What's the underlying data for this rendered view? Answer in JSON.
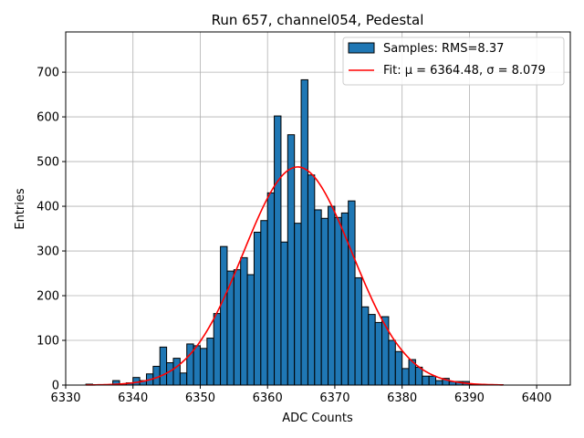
{
  "chart_data": {
    "type": "bar",
    "title": "Run 657, channel054, Pedestal",
    "xlabel": "ADC Counts",
    "ylabel": "Entries",
    "xlim": [
      6330,
      6405
    ],
    "ylim": [
      0,
      790
    ],
    "x_ticks": [
      6330,
      6340,
      6350,
      6360,
      6370,
      6380,
      6390,
      6400
    ],
    "y_ticks": [
      0,
      100,
      200,
      300,
      400,
      500,
      600,
      700
    ],
    "grid": true,
    "legend_position": "top-right",
    "colors": {
      "bars": "#1f77b4",
      "bar_edge": "#000000",
      "fit": "#ff0000"
    },
    "histogram": {
      "name": "Samples: RMS=8.37",
      "bin_width": 1,
      "bins": [
        {
          "x": 6333,
          "count": 2
        },
        {
          "x": 6334,
          "count": 1
        },
        {
          "x": 6335,
          "count": 1
        },
        {
          "x": 6336,
          "count": 1
        },
        {
          "x": 6337,
          "count": 10
        },
        {
          "x": 6338,
          "count": 3
        },
        {
          "x": 6339,
          "count": 5
        },
        {
          "x": 6340,
          "count": 17
        },
        {
          "x": 6341,
          "count": 10
        },
        {
          "x": 6342,
          "count": 25
        },
        {
          "x": 6343,
          "count": 42
        },
        {
          "x": 6344,
          "count": 85
        },
        {
          "x": 6345,
          "count": 50
        },
        {
          "x": 6346,
          "count": 60
        },
        {
          "x": 6347,
          "count": 27
        },
        {
          "x": 6348,
          "count": 92
        },
        {
          "x": 6349,
          "count": 88
        },
        {
          "x": 6350,
          "count": 82
        },
        {
          "x": 6351,
          "count": 105
        },
        {
          "x": 6352,
          "count": 160
        },
        {
          "x": 6353,
          "count": 310
        },
        {
          "x": 6354,
          "count": 255
        },
        {
          "x": 6355,
          "count": 258
        },
        {
          "x": 6356,
          "count": 285
        },
        {
          "x": 6357,
          "count": 247
        },
        {
          "x": 6358,
          "count": 342
        },
        {
          "x": 6359,
          "count": 368
        },
        {
          "x": 6360,
          "count": 430
        },
        {
          "x": 6361,
          "count": 602
        },
        {
          "x": 6362,
          "count": 320
        },
        {
          "x": 6363,
          "count": 560
        },
        {
          "x": 6364,
          "count": 362
        },
        {
          "x": 6365,
          "count": 683
        },
        {
          "x": 6366,
          "count": 470
        },
        {
          "x": 6367,
          "count": 392
        },
        {
          "x": 6368,
          "count": 373
        },
        {
          "x": 6369,
          "count": 400
        },
        {
          "x": 6370,
          "count": 375
        },
        {
          "x": 6371,
          "count": 385
        },
        {
          "x": 6372,
          "count": 412
        },
        {
          "x": 6373,
          "count": 240
        },
        {
          "x": 6374,
          "count": 175
        },
        {
          "x": 6375,
          "count": 158
        },
        {
          "x": 6376,
          "count": 140
        },
        {
          "x": 6377,
          "count": 153
        },
        {
          "x": 6378,
          "count": 100
        },
        {
          "x": 6379,
          "count": 75
        },
        {
          "x": 6380,
          "count": 37
        },
        {
          "x": 6381,
          "count": 57
        },
        {
          "x": 6382,
          "count": 40
        },
        {
          "x": 6383,
          "count": 20
        },
        {
          "x": 6384,
          "count": 20
        },
        {
          "x": 6385,
          "count": 10
        },
        {
          "x": 6386,
          "count": 15
        },
        {
          "x": 6387,
          "count": 8
        },
        {
          "x": 6388,
          "count": 8
        },
        {
          "x": 6389,
          "count": 8
        },
        {
          "x": 6390,
          "count": 2
        },
        {
          "x": 6391,
          "count": 1
        },
        {
          "x": 6392,
          "count": 1
        },
        {
          "x": 6393,
          "count": 1
        },
        {
          "x": 6394,
          "count": 1
        }
      ]
    },
    "fit": {
      "name": "Fit: μ = 6364.48, σ = 8.079",
      "mu": 6364.48,
      "sigma": 8.079,
      "amplitude": 488,
      "x_range": [
        6333,
        6395
      ]
    }
  }
}
